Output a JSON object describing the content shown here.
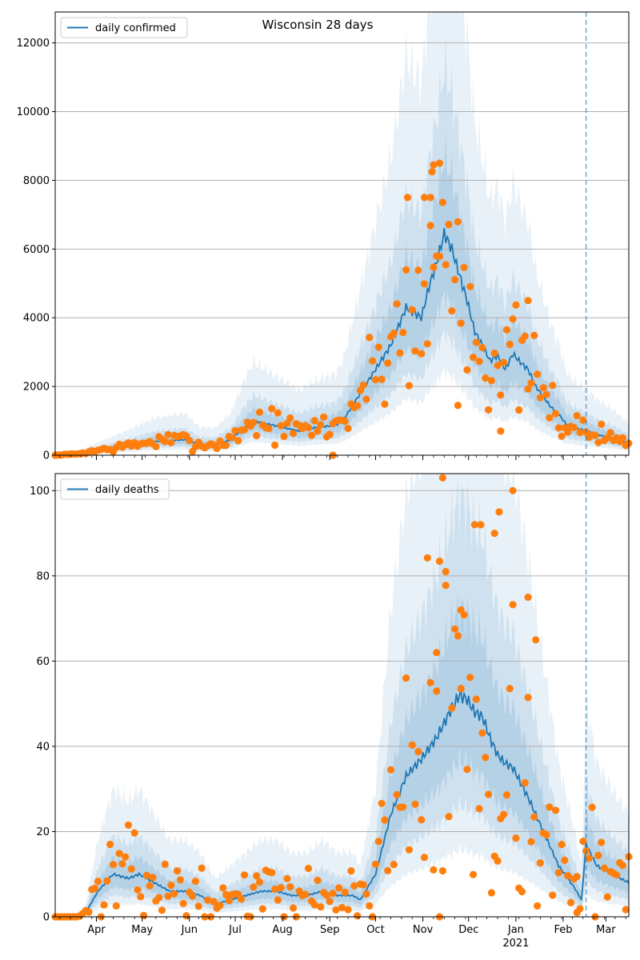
{
  "figure_title": "Wisconsin 28 days",
  "colors": {
    "model_line": "#1f77b4",
    "observed_points": "#ff7f0e",
    "band": "#1f77b4",
    "forecast_divider": "#1f77b4",
    "grid": "#b0b0b0"
  },
  "chart_data": [
    {
      "type": "line",
      "legend": [
        "daily confirmed"
      ],
      "legend_position": "top-left",
      "title": "Wisconsin 28 days",
      "x_domain_days": [
        0,
        376
      ],
      "forecast_start_day": 348,
      "ylim": [
        0,
        12900
      ],
      "yticks": [
        0,
        2000,
        4000,
        6000,
        8000,
        10000,
        12000
      ],
      "grid": "horizontal",
      "fit_knots": {
        "day": [
          0,
          15,
          25,
          45,
          65,
          85,
          95,
          105,
          115,
          125,
          130,
          140,
          150,
          160,
          170,
          180,
          185,
          190,
          200,
          210,
          220,
          230,
          240,
          245,
          250,
          255,
          260,
          270,
          275,
          280,
          285,
          290,
          295,
          300,
          305,
          310,
          315,
          320,
          325,
          330,
          335,
          340,
          345,
          348,
          355,
          365,
          376
        ],
        "value": [
          0,
          40,
          120,
          250,
          400,
          450,
          300,
          300,
          450,
          850,
          1000,
          900,
          800,
          700,
          800,
          850,
          900,
          1100,
          1800,
          2500,
          3200,
          4300,
          4000,
          4900,
          5600,
          6450,
          6000,
          4500,
          3600,
          3200,
          2750,
          2900,
          2500,
          2950,
          2700,
          2500,
          2000,
          1700,
          1400,
          1200,
          900,
          800,
          750,
          720,
          600,
          500,
          350
        ]
      },
      "band_inner_ratio": [
        0.72,
        1.35
      ],
      "band_mid_ratio": [
        0.55,
        1.75
      ],
      "band_outer_ratio": [
        0.38,
        2.7
      ],
      "observed_scatter": {
        "seed": 7,
        "relative_spread": 0.28,
        "step_days": 2,
        "manual_points": [
          {
            "day": 182,
            "value": 0
          },
          {
            "day": 231,
            "value": 7500
          },
          {
            "day": 247,
            "value": 8250
          },
          {
            "day": 248,
            "value": 8450
          },
          {
            "day": 252,
            "value": 8500
          },
          {
            "day": 246,
            "value": 7500
          },
          {
            "day": 264,
            "value": 1450
          },
          {
            "day": 292,
            "value": 700
          },
          {
            "day": 310,
            "value": 4500
          },
          {
            "day": 242,
            "value": 7500
          }
        ]
      }
    },
    {
      "type": "line",
      "legend": [
        "daily deaths"
      ],
      "legend_position": "top-left",
      "x_domain_days": [
        0,
        376
      ],
      "forecast_start_day": 348,
      "ylim": [
        0,
        104
      ],
      "yticks": [
        0,
        20,
        40,
        60,
        80,
        100
      ],
      "grid": "horizontal",
      "fit_knots": {
        "day": [
          0,
          10,
          15,
          20,
          28,
          38,
          48,
          55,
          65,
          75,
          85,
          95,
          105,
          115,
          125,
          135,
          145,
          155,
          165,
          175,
          185,
          195,
          200,
          210,
          220,
          230,
          240,
          250,
          260,
          265,
          270,
          275,
          280,
          285,
          290,
          295,
          300,
          310,
          320,
          330,
          340,
          345,
          348,
          355,
          365,
          376
        ],
        "value": [
          0,
          0,
          0,
          1,
          6,
          10,
          9,
          10,
          8,
          6,
          6,
          5,
          3,
          4,
          5,
          6,
          6,
          5,
          5,
          6,
          5,
          5,
          4,
          10,
          24,
          33,
          37,
          42,
          49,
          52,
          51,
          48,
          47,
          42,
          38,
          36,
          35,
          28,
          20,
          12,
          7,
          4,
          17,
          12,
          10,
          8
        ]
      },
      "band_inner_ratio": [
        0.7,
        1.4
      ],
      "band_mid_ratio": [
        0.5,
        1.9
      ],
      "band_outer_ratio": [
        0.3,
        3.0
      ],
      "observed_scatter": {
        "seed": 13,
        "relative_spread": 0.55,
        "step_days": 2,
        "manual_points": [
          {
            "day": 254,
            "value": 103
          },
          {
            "day": 275,
            "value": 92
          },
          {
            "day": 279,
            "value": 92
          },
          {
            "day": 291,
            "value": 95
          },
          {
            "day": 300,
            "value": 100
          },
          {
            "day": 288,
            "value": 90
          },
          {
            "day": 250,
            "value": 62
          },
          {
            "day": 256,
            "value": 81
          },
          {
            "day": 266,
            "value": 72
          },
          {
            "day": 252,
            "value": 0
          },
          {
            "day": 310,
            "value": 75
          },
          {
            "day": 315,
            "value": 65
          },
          {
            "day": 342,
            "value": 1
          }
        ]
      },
      "xticks": [
        {
          "day": 27,
          "label": "Apr"
        },
        {
          "day": 57,
          "label": "May"
        },
        {
          "day": 88,
          "label": "Jun"
        },
        {
          "day": 118,
          "label": "Jul"
        },
        {
          "day": 149,
          "label": "Aug"
        },
        {
          "day": 180,
          "label": "Sep"
        },
        {
          "day": 210,
          "label": "Oct"
        },
        {
          "day": 241,
          "label": "Nov"
        },
        {
          "day": 271,
          "label": "Dec"
        },
        {
          "day": 302,
          "label": "Jan"
        },
        {
          "day": 333,
          "label": "Feb"
        },
        {
          "day": 361,
          "label": "Mar"
        }
      ],
      "year_label": "2021"
    }
  ]
}
